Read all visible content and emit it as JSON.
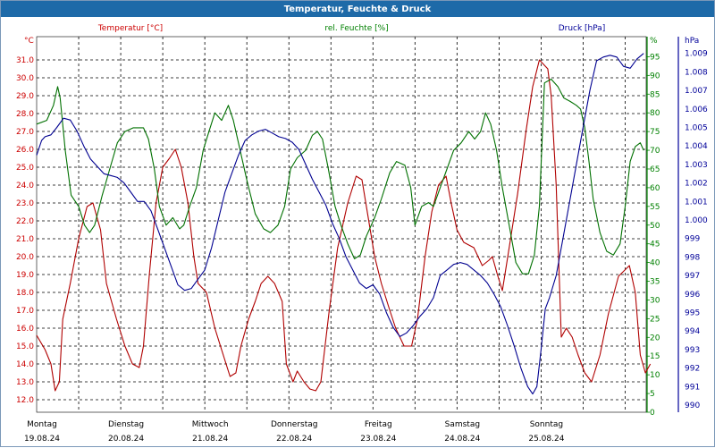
{
  "window_title": "Temperatur, Feuchte & Druck",
  "legend": {
    "temp_label": "Temperatur [°C]",
    "hum_label": "rel. Feuchte [%]",
    "press_label": "Druck [hPa]"
  },
  "axes": {
    "left_unit": "°C",
    "mid_unit": "%",
    "right_unit": "hPa"
  },
  "colors": {
    "temperature": "#b00000",
    "humidity": "#007000",
    "pressure": "#000090",
    "grid": "#000000"
  },
  "chart_data": {
    "type": "line",
    "x_range": [
      "19.08.24 00:00",
      "26.08.24 00:00"
    ],
    "x_ticks": [
      {
        "day": "Montag",
        "date": "19.08.24",
        "t": 0
      },
      {
        "day": "Dienstag",
        "date": "20.08.24",
        "t": 1
      },
      {
        "day": "Mittwoch",
        "date": "21.08.24",
        "t": 2
      },
      {
        "day": "Donnerstag",
        "date": "22.08.24",
        "t": 3
      },
      {
        "day": "Freitag",
        "date": "23.08.24",
        "t": 4
      },
      {
        "day": "Samstag",
        "date": "24.08.24",
        "t": 5
      },
      {
        "day": "Sonntag",
        "date": "25.08.24",
        "t": 6
      }
    ],
    "y_axes": {
      "temperature": {
        "min": 12.0,
        "max": 31.0,
        "step": 1.0,
        "unit": "°C"
      },
      "humidity": {
        "min": 0,
        "max": 95,
        "step": 5,
        "unit": "%"
      },
      "pressure": {
        "min": 990,
        "max": 1009,
        "step": 1,
        "unit": "hPa"
      }
    },
    "grid": true,
    "series": [
      {
        "name": "Temperatur [°C]",
        "axis": "temperature",
        "points": [
          [
            0.0,
            15.6
          ],
          [
            0.1,
            14.8
          ],
          [
            0.17,
            14.0
          ],
          [
            0.22,
            12.5
          ],
          [
            0.27,
            13.0
          ],
          [
            0.31,
            16.5
          ],
          [
            0.4,
            18.5
          ],
          [
            0.5,
            21.0
          ],
          [
            0.6,
            22.8
          ],
          [
            0.67,
            23.0
          ],
          [
            0.76,
            21.5
          ],
          [
            0.83,
            18.5
          ],
          [
            0.95,
            16.5
          ],
          [
            1.05,
            15.0
          ],
          [
            1.14,
            14.0
          ],
          [
            1.22,
            13.8
          ],
          [
            1.27,
            15.0
          ],
          [
            1.34,
            19.0
          ],
          [
            1.42,
            23.0
          ],
          [
            1.5,
            25.0
          ],
          [
            1.58,
            25.5
          ],
          [
            1.65,
            26.0
          ],
          [
            1.72,
            25.0
          ],
          [
            1.8,
            23.0
          ],
          [
            1.87,
            20.0
          ],
          [
            1.92,
            18.5
          ],
          [
            2.02,
            18.0
          ],
          [
            2.12,
            16.0
          ],
          [
            2.22,
            14.5
          ],
          [
            2.3,
            13.3
          ],
          [
            2.37,
            13.5
          ],
          [
            2.43,
            15.0
          ],
          [
            2.52,
            16.5
          ],
          [
            2.6,
            17.5
          ],
          [
            2.67,
            18.5
          ],
          [
            2.75,
            18.9
          ],
          [
            2.83,
            18.5
          ],
          [
            2.92,
            17.5
          ],
          [
            2.97,
            14.0
          ],
          [
            3.05,
            13.0
          ],
          [
            3.1,
            13.6
          ],
          [
            3.18,
            13.0
          ],
          [
            3.25,
            12.6
          ],
          [
            3.32,
            12.5
          ],
          [
            3.38,
            13.0
          ],
          [
            3.48,
            17.0
          ],
          [
            3.58,
            20.5
          ],
          [
            3.7,
            23.0
          ],
          [
            3.8,
            24.5
          ],
          [
            3.87,
            24.3
          ],
          [
            3.95,
            22.0
          ],
          [
            4.02,
            20.0
          ],
          [
            4.1,
            18.5
          ],
          [
            4.2,
            17.0
          ],
          [
            4.27,
            16.0
          ],
          [
            4.37,
            15.0
          ],
          [
            4.46,
            15.0
          ],
          [
            4.53,
            16.5
          ],
          [
            4.62,
            20.0
          ],
          [
            4.7,
            22.5
          ],
          [
            4.78,
            24.0
          ],
          [
            4.87,
            24.5
          ],
          [
            4.93,
            23.0
          ],
          [
            5.0,
            21.5
          ],
          [
            5.08,
            20.8
          ],
          [
            5.2,
            20.5
          ],
          [
            5.3,
            19.5
          ],
          [
            5.38,
            19.8
          ],
          [
            5.42,
            20.0
          ],
          [
            5.48,
            19.0
          ],
          [
            5.54,
            18.1
          ],
          [
            5.62,
            20.5
          ],
          [
            5.72,
            23.5
          ],
          [
            5.82,
            27.0
          ],
          [
            5.9,
            29.5
          ],
          [
            5.98,
            31.0
          ],
          [
            6.08,
            30.5
          ],
          [
            6.12,
            29.0
          ],
          [
            6.18,
            24.0
          ],
          [
            6.24,
            15.5
          ],
          [
            6.3,
            16.0
          ],
          [
            6.37,
            15.5
          ],
          [
            6.44,
            14.5
          ],
          [
            6.52,
            13.5
          ],
          [
            6.6,
            13.0
          ],
          [
            6.7,
            14.5
          ],
          [
            6.8,
            16.8
          ],
          [
            6.92,
            18.9
          ],
          [
            7.05,
            19.5
          ],
          [
            7.12,
            18.0
          ],
          [
            7.18,
            14.5
          ],
          [
            7.24,
            13.5
          ],
          [
            7.3,
            14.0
          ]
        ]
      },
      {
        "name": "rel. Feuchte [%]",
        "axis": "humidity",
        "points": [
          [
            0.0,
            77
          ],
          [
            0.12,
            78
          ],
          [
            0.2,
            82
          ],
          [
            0.25,
            87
          ],
          [
            0.28,
            84
          ],
          [
            0.34,
            70
          ],
          [
            0.41,
            58
          ],
          [
            0.5,
            55
          ],
          [
            0.57,
            50
          ],
          [
            0.63,
            48
          ],
          [
            0.69,
            50
          ],
          [
            0.78,
            58
          ],
          [
            0.87,
            65
          ],
          [
            0.96,
            72
          ],
          [
            1.05,
            75
          ],
          [
            1.15,
            76
          ],
          [
            1.27,
            76
          ],
          [
            1.33,
            73
          ],
          [
            1.4,
            65
          ],
          [
            1.46,
            55
          ],
          [
            1.54,
            50
          ],
          [
            1.62,
            52
          ],
          [
            1.7,
            49
          ],
          [
            1.75,
            50
          ],
          [
            1.82,
            55
          ],
          [
            1.9,
            60
          ],
          [
            1.98,
            70
          ],
          [
            2.05,
            75
          ],
          [
            2.12,
            80
          ],
          [
            2.2,
            78
          ],
          [
            2.28,
            82
          ],
          [
            2.34,
            78
          ],
          [
            2.4,
            72
          ],
          [
            2.5,
            62
          ],
          [
            2.6,
            53
          ],
          [
            2.7,
            49
          ],
          [
            2.78,
            48
          ],
          [
            2.87,
            50
          ],
          [
            2.95,
            55
          ],
          [
            3.02,
            65
          ],
          [
            3.1,
            68
          ],
          [
            3.2,
            70
          ],
          [
            3.28,
            74
          ],
          [
            3.34,
            75
          ],
          [
            3.4,
            73
          ],
          [
            3.47,
            65
          ],
          [
            3.55,
            55
          ],
          [
            3.62,
            50
          ],
          [
            3.7,
            45
          ],
          [
            3.78,
            41
          ],
          [
            3.85,
            42
          ],
          [
            3.92,
            47
          ],
          [
            4.02,
            52
          ],
          [
            4.1,
            57
          ],
          [
            4.2,
            64
          ],
          [
            4.28,
            67
          ],
          [
            4.38,
            66
          ],
          [
            4.45,
            60
          ],
          [
            4.5,
            50
          ],
          [
            4.58,
            55
          ],
          [
            4.66,
            56
          ],
          [
            4.72,
            55
          ],
          [
            4.8,
            60
          ],
          [
            4.88,
            65
          ],
          [
            4.96,
            70
          ],
          [
            5.05,
            72
          ],
          [
            5.14,
            75
          ],
          [
            5.21,
            73
          ],
          [
            5.28,
            75
          ],
          [
            5.34,
            80
          ],
          [
            5.4,
            77
          ],
          [
            5.47,
            70
          ],
          [
            5.54,
            60
          ],
          [
            5.62,
            50
          ],
          [
            5.7,
            40
          ],
          [
            5.78,
            37
          ],
          [
            5.85,
            37
          ],
          [
            5.92,
            42
          ],
          [
            5.98,
            55
          ],
          [
            6.04,
            88
          ],
          [
            6.12,
            89
          ],
          [
            6.2,
            87
          ],
          [
            6.27,
            84
          ],
          [
            6.35,
            83
          ],
          [
            6.42,
            82
          ],
          [
            6.47,
            81
          ],
          [
            6.52,
            76
          ],
          [
            6.57,
            67
          ],
          [
            6.62,
            57
          ],
          [
            6.7,
            48
          ],
          [
            6.78,
            43
          ],
          [
            6.86,
            42
          ],
          [
            6.94,
            45
          ],
          [
            7.0,
            55
          ],
          [
            7.06,
            67
          ],
          [
            7.12,
            71
          ],
          [
            7.18,
            72
          ],
          [
            7.22,
            70
          ]
        ]
      },
      {
        "name": "Druck [hPa]",
        "axis": "pressure",
        "points": [
          [
            0.0,
            1003.5
          ],
          [
            0.06,
            1004.3
          ],
          [
            0.1,
            1004.5
          ],
          [
            0.17,
            1004.6
          ],
          [
            0.24,
            1005.0
          ],
          [
            0.32,
            1005.5
          ],
          [
            0.4,
            1005.4
          ],
          [
            0.48,
            1004.8
          ],
          [
            0.56,
            1004.0
          ],
          [
            0.64,
            1003.3
          ],
          [
            0.72,
            1002.9
          ],
          [
            0.8,
            1002.5
          ],
          [
            0.88,
            1002.4
          ],
          [
            0.96,
            1002.3
          ],
          [
            1.04,
            1002.0
          ],
          [
            1.12,
            1001.5
          ],
          [
            1.2,
            1001.0
          ],
          [
            1.28,
            1001.0
          ],
          [
            1.36,
            1000.5
          ],
          [
            1.44,
            999.5
          ],
          [
            1.52,
            998.5
          ],
          [
            1.6,
            997.5
          ],
          [
            1.68,
            996.5
          ],
          [
            1.76,
            996.2
          ],
          [
            1.84,
            996.3
          ],
          [
            1.92,
            996.8
          ],
          [
            2.0,
            997.3
          ],
          [
            2.08,
            998.5
          ],
          [
            2.16,
            1000.0
          ],
          [
            2.24,
            1001.5
          ],
          [
            2.32,
            1002.5
          ],
          [
            2.4,
            1003.5
          ],
          [
            2.48,
            1004.3
          ],
          [
            2.56,
            1004.6
          ],
          [
            2.64,
            1004.8
          ],
          [
            2.72,
            1004.9
          ],
          [
            2.8,
            1004.7
          ],
          [
            2.88,
            1004.5
          ],
          [
            2.96,
            1004.4
          ],
          [
            3.04,
            1004.2
          ],
          [
            3.12,
            1003.8
          ],
          [
            3.2,
            1003.0
          ],
          [
            3.28,
            1002.2
          ],
          [
            3.36,
            1001.5
          ],
          [
            3.44,
            1000.8
          ],
          [
            3.52,
            999.8
          ],
          [
            3.6,
            999.0
          ],
          [
            3.68,
            998.0
          ],
          [
            3.76,
            997.3
          ],
          [
            3.84,
            996.6
          ],
          [
            3.92,
            996.3
          ],
          [
            4.0,
            996.5
          ],
          [
            4.08,
            996.0
          ],
          [
            4.16,
            995.0
          ],
          [
            4.24,
            994.2
          ],
          [
            4.32,
            993.7
          ],
          [
            4.4,
            993.9
          ],
          [
            4.48,
            994.3
          ],
          [
            4.56,
            994.8
          ],
          [
            4.64,
            995.2
          ],
          [
            4.72,
            995.8
          ],
          [
            4.8,
            997.0
          ],
          [
            4.88,
            997.3
          ],
          [
            4.96,
            997.6
          ],
          [
            5.04,
            997.7
          ],
          [
            5.12,
            997.6
          ],
          [
            5.2,
            997.3
          ],
          [
            5.28,
            997.0
          ],
          [
            5.36,
            996.6
          ],
          [
            5.44,
            996.0
          ],
          [
            5.52,
            995.3
          ],
          [
            5.6,
            994.3
          ],
          [
            5.68,
            993.2
          ],
          [
            5.76,
            992.0
          ],
          [
            5.84,
            991.0
          ],
          [
            5.9,
            990.6
          ],
          [
            5.95,
            991.0
          ],
          [
            6.0,
            993.0
          ],
          [
            6.05,
            995.2
          ],
          [
            6.1,
            995.8
          ],
          [
            6.18,
            997.0
          ],
          [
            6.26,
            999.0
          ],
          [
            6.34,
            1001.0
          ],
          [
            6.42,
            1003.0
          ],
          [
            6.5,
            1005.0
          ],
          [
            6.58,
            1007.0
          ],
          [
            6.66,
            1008.6
          ],
          [
            6.74,
            1008.8
          ],
          [
            6.82,
            1008.9
          ],
          [
            6.9,
            1008.8
          ],
          [
            6.98,
            1008.3
          ],
          [
            7.06,
            1008.2
          ],
          [
            7.14,
            1008.7
          ],
          [
            7.22,
            1009.0
          ]
        ]
      }
    ]
  }
}
